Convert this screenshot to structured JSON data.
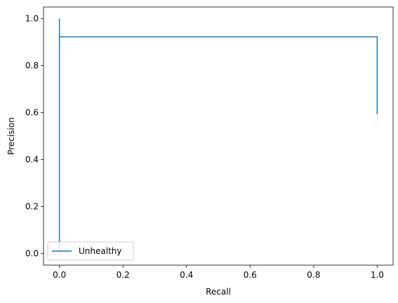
{
  "chart_data": {
    "type": "line",
    "title": "",
    "xlabel": "Recall",
    "ylabel": "Precision",
    "xlim": [
      -0.05,
      1.05
    ],
    "ylim": [
      -0.05,
      1.05
    ],
    "xticks": [
      "0.0",
      "0.2",
      "0.4",
      "0.6",
      "0.8",
      "1.0"
    ],
    "yticks": [
      "0.0",
      "0.2",
      "0.4",
      "0.6",
      "0.8",
      "1.0"
    ],
    "xtick_values": [
      0.0,
      0.2,
      0.4,
      0.6,
      0.8,
      1.0
    ],
    "ytick_values": [
      0.0,
      0.2,
      0.4,
      0.6,
      0.8,
      1.0
    ],
    "grid": false,
    "legend_position": "lower-left",
    "series": [
      {
        "name": "Unhealthy",
        "color": "#1f77b4",
        "step": true,
        "x": [
          0.0,
          0.0,
          0.0,
          1.0,
          1.0
        ],
        "y": [
          0.0,
          1.0,
          0.923,
          0.923,
          0.593
        ]
      }
    ]
  }
}
